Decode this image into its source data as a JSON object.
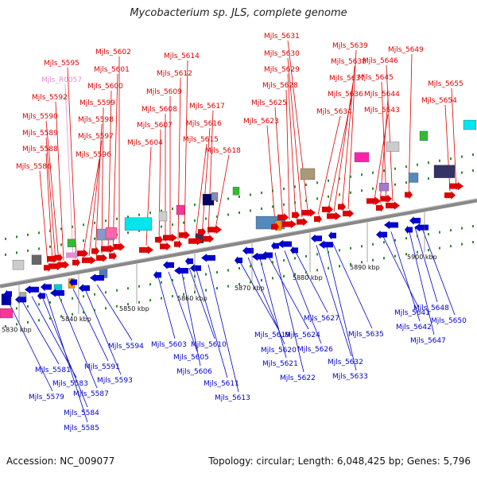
{
  "title": "Mycobacterium sp. JLS, complete genome",
  "footer": {
    "accession": "Accession: NC_009077",
    "summary": "Topology: circular; Length: 6,048,425 bp; Genes: 5,796"
  },
  "colors": {
    "forward": "#dd0000",
    "reverse": "#0000cc",
    "rna": "#e090d0",
    "backbone": "#888888"
  },
  "scale_labels": [
    "5830 kbp",
    "5840 kbp",
    "5850 kbp",
    "5860 kbp",
    "5870 kbp",
    "5880 kbp",
    "5890 kbp",
    "5900 kbp"
  ],
  "top_genes": [
    {
      "label": "Mjls_5586",
      "kind": "forward"
    },
    {
      "label": "Mjls_5588",
      "kind": "forward"
    },
    {
      "label": "Mjls_5589",
      "kind": "forward"
    },
    {
      "label": "Mjls_5590",
      "kind": "forward"
    },
    {
      "label": "Mjls_5592",
      "kind": "forward"
    },
    {
      "label": "Mjls_R0057",
      "kind": "rna"
    },
    {
      "label": "Mjls_5595",
      "kind": "forward"
    },
    {
      "label": "Mjls_5596",
      "kind": "forward"
    },
    {
      "label": "Mjls_5597",
      "kind": "forward"
    },
    {
      "label": "Mjls_5598",
      "kind": "forward"
    },
    {
      "label": "Mjls_5599",
      "kind": "forward"
    },
    {
      "label": "Mjls_5600",
      "kind": "forward"
    },
    {
      "label": "Mjls_5601",
      "kind": "forward"
    },
    {
      "label": "Mjls_5602",
      "kind": "forward"
    },
    {
      "label": "Mjls_5604",
      "kind": "forward"
    },
    {
      "label": "Mjls_5607",
      "kind": "forward"
    },
    {
      "label": "Mjls_5608",
      "kind": "forward"
    },
    {
      "label": "Mjls_5609",
      "kind": "forward"
    },
    {
      "label": "Mjls_5612",
      "kind": "forward"
    },
    {
      "label": "Mjls_5614",
      "kind": "forward"
    },
    {
      "label": "Mjls_5615",
      "kind": "forward"
    },
    {
      "label": "Mjls_5616",
      "kind": "forward"
    },
    {
      "label": "Mjls_5617",
      "kind": "forward"
    },
    {
      "label": "Mjls_5618",
      "kind": "forward"
    },
    {
      "label": "Mjls_5623",
      "kind": "forward"
    },
    {
      "label": "Mjls_5625",
      "kind": "forward"
    },
    {
      "label": "Mjls_5628",
      "kind": "forward"
    },
    {
      "label": "Mjls_5629",
      "kind": "forward"
    },
    {
      "label": "Mjls_5630",
      "kind": "forward"
    },
    {
      "label": "Mjls_5631",
      "kind": "forward"
    },
    {
      "label": "Mjls_5634",
      "kind": "forward"
    },
    {
      "label": "Mjls_5636",
      "kind": "forward"
    },
    {
      "label": "Mjls_5637",
      "kind": "forward"
    },
    {
      "label": "Mjls_5638",
      "kind": "forward"
    },
    {
      "label": "Mjls_5639",
      "kind": "forward"
    },
    {
      "label": "Mjls_5643",
      "kind": "forward"
    },
    {
      "label": "Mjls_5644",
      "kind": "forward"
    },
    {
      "label": "Mjls_5645",
      "kind": "forward"
    },
    {
      "label": "Mjls_5646",
      "kind": "forward"
    },
    {
      "label": "Mjls_5649",
      "kind": "forward"
    },
    {
      "label": "Mjls_5654",
      "kind": "forward"
    },
    {
      "label": "Mjls_5655",
      "kind": "forward"
    }
  ],
  "bottom_genes": [
    {
      "label": "Mjls_5579"
    },
    {
      "label": "Mjls_5581"
    },
    {
      "label": "Mjls_5583"
    },
    {
      "label": "Mjls_5584"
    },
    {
      "label": "Mjls_5585"
    },
    {
      "label": "Mjls_5587"
    },
    {
      "label": "Mjls_5591"
    },
    {
      "label": "Mjls_5593"
    },
    {
      "label": "Mjls_5594"
    },
    {
      "label": "Mjls_5603"
    },
    {
      "label": "Mjls_5605"
    },
    {
      "label": "Mjls_5606"
    },
    {
      "label": "Mjls_5610"
    },
    {
      "label": "Mjls_5611"
    },
    {
      "label": "Mjls_5613"
    },
    {
      "label": "Mjls_5619"
    },
    {
      "label": "Mjls_5620"
    },
    {
      "label": "Mjls_5621"
    },
    {
      "label": "Mjls_5622"
    },
    {
      "label": "Mjls_5624"
    },
    {
      "label": "Mjls_5626"
    },
    {
      "label": "Mjls_5627"
    },
    {
      "label": "Mjls_5632"
    },
    {
      "label": "Mjls_5633"
    },
    {
      "label": "Mjls_5635"
    },
    {
      "label": "Mjls_5641"
    },
    {
      "label": "Mjls_5642"
    },
    {
      "label": "Mjls_5647"
    },
    {
      "label": "Mjls_5648"
    },
    {
      "label": "Mjls_5650"
    }
  ]
}
